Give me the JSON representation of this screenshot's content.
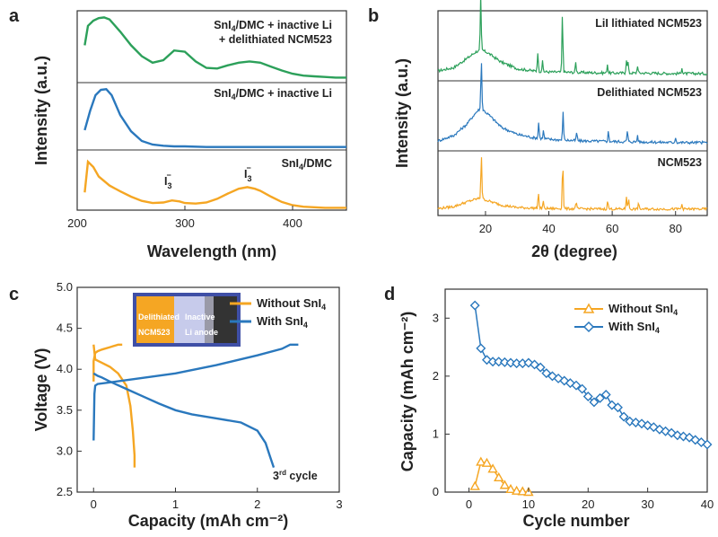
{
  "figure": {
    "panels": [
      "a",
      "b",
      "c",
      "d"
    ]
  },
  "chart_data": [
    {
      "id": "a",
      "type": "line",
      "xlabel": "Wavelength (nm)",
      "ylabel": "Intensity (a.u.)",
      "xlim": [
        200,
        450
      ],
      "xticks": [
        "200",
        "300",
        "400"
      ],
      "annotations": [
        "I3⁻",
        "I3⁻"
      ],
      "series": [
        {
          "name": "SnI4/DMC + inactive Li + delithiated NCM523",
          "color": "#2ca05a",
          "x": [
            207,
            210,
            215,
            220,
            225,
            230,
            240,
            250,
            260,
            270,
            280,
            290,
            300,
            310,
            320,
            330,
            340,
            350,
            360,
            370,
            380,
            390,
            400,
            410,
            420,
            430,
            440,
            450
          ],
          "y": [
            0.55,
            0.85,
            0.93,
            0.97,
            0.98,
            0.95,
            0.76,
            0.55,
            0.38,
            0.28,
            0.32,
            0.47,
            0.45,
            0.3,
            0.2,
            0.19,
            0.24,
            0.28,
            0.3,
            0.28,
            0.22,
            0.16,
            0.11,
            0.08,
            0.07,
            0.06,
            0.05,
            0.05
          ]
        },
        {
          "name": "SnI4/DMC + inactive Li",
          "color": "#2a78bd",
          "x": [
            207,
            212,
            217,
            222,
            227,
            232,
            240,
            250,
            260,
            270,
            280,
            290,
            300,
            320,
            340,
            360,
            380,
            400,
            420,
            450
          ],
          "y": [
            0.3,
            0.62,
            0.88,
            0.97,
            0.98,
            0.88,
            0.55,
            0.28,
            0.12,
            0.06,
            0.04,
            0.03,
            0.03,
            0.02,
            0.02,
            0.02,
            0.02,
            0.02,
            0.02,
            0.02
          ]
        },
        {
          "name": "SnI4/DMC",
          "color": "#f5a623",
          "x": [
            207,
            210,
            215,
            220,
            230,
            240,
            250,
            260,
            270,
            280,
            288,
            295,
            300,
            310,
            320,
            330,
            340,
            350,
            358,
            365,
            370,
            380,
            390,
            400,
            410,
            420,
            430,
            440,
            450
          ],
          "y": [
            0.3,
            0.88,
            0.78,
            0.6,
            0.43,
            0.32,
            0.22,
            0.14,
            0.1,
            0.11,
            0.15,
            0.13,
            0.1,
            0.09,
            0.11,
            0.18,
            0.28,
            0.37,
            0.4,
            0.37,
            0.33,
            0.22,
            0.12,
            0.06,
            0.03,
            0.02,
            0.01,
            0.01,
            0.01
          ]
        }
      ]
    },
    {
      "id": "b",
      "type": "line",
      "xlabel": "2θ (degree)",
      "ylabel": "Intensity (a.u.)",
      "xlim": [
        5,
        90
      ],
      "xticks": [
        "20",
        "40",
        "60",
        "80"
      ],
      "series": [
        {
          "name": "LiI lithiated NCM523",
          "color": "#2ca05a",
          "broad": [
            [
              5,
              0.1
            ],
            [
              10,
              0.16
            ],
            [
              14,
              0.32
            ],
            [
              17,
              0.45
            ],
            [
              19,
              0.48
            ],
            [
              21,
              0.42
            ],
            [
              25,
              0.26
            ],
            [
              30,
              0.14
            ],
            [
              35,
              0.1
            ],
            [
              40,
              0.08
            ],
            [
              50,
              0.07
            ],
            [
              60,
              0.06
            ],
            [
              70,
              0.06
            ],
            [
              80,
              0.05
            ],
            [
              90,
              0.05
            ]
          ],
          "peaks": [
            [
              18.5,
              1.0
            ],
            [
              36.5,
              0.35
            ],
            [
              38,
              0.18
            ],
            [
              44.3,
              1.05
            ],
            [
              48.5,
              0.18
            ],
            [
              58.5,
              0.16
            ],
            [
              64.5,
              0.25
            ],
            [
              65,
              0.2
            ],
            [
              68,
              0.14
            ],
            [
              82,
              0.12
            ]
          ]
        },
        {
          "name": "Delithiated NCM523",
          "color": "#2a78bd",
          "broad": [
            [
              5,
              0.1
            ],
            [
              10,
              0.2
            ],
            [
              14,
              0.4
            ],
            [
              17,
              0.62
            ],
            [
              18.5,
              0.7
            ],
            [
              21,
              0.58
            ],
            [
              25,
              0.35
            ],
            [
              30,
              0.22
            ],
            [
              35,
              0.16
            ],
            [
              40,
              0.13
            ],
            [
              50,
              0.1
            ],
            [
              60,
              0.09
            ],
            [
              70,
              0.08
            ],
            [
              80,
              0.07
            ],
            [
              90,
              0.07
            ]
          ],
          "peaks": [
            [
              18.7,
              0.9
            ],
            [
              36.8,
              0.3
            ],
            [
              38.3,
              0.15
            ],
            [
              44.5,
              0.5
            ],
            [
              48.8,
              0.15
            ],
            [
              58.8,
              0.18
            ],
            [
              64.8,
              0.2
            ],
            [
              68,
              0.12
            ],
            [
              80,
              0.1
            ]
          ]
        },
        {
          "name": "NCM523",
          "color": "#f5a623",
          "broad": [
            [
              5,
              0.05
            ],
            [
              10,
              0.09
            ],
            [
              14,
              0.18
            ],
            [
              17,
              0.24
            ],
            [
              18.5,
              0.26
            ],
            [
              21,
              0.2
            ],
            [
              25,
              0.12
            ],
            [
              30,
              0.07
            ],
            [
              40,
              0.05
            ],
            [
              60,
              0.04
            ],
            [
              90,
              0.04
            ]
          ],
          "peaks": [
            [
              18.7,
              0.88
            ],
            [
              36.7,
              0.32
            ],
            [
              38.2,
              0.14
            ],
            [
              44.4,
              0.95
            ],
            [
              48.6,
              0.14
            ],
            [
              58.6,
              0.16
            ],
            [
              64.5,
              0.26
            ],
            [
              65.2,
              0.2
            ],
            [
              68.3,
              0.12
            ],
            [
              82,
              0.1
            ]
          ]
        }
      ]
    },
    {
      "id": "c",
      "type": "line",
      "xlabel": "Capacity (mAh cm⁻²)",
      "ylabel": "Voltage (V)",
      "xlim": [
        -0.2,
        3.0
      ],
      "ylim": [
        2.5,
        5.0
      ],
      "xticks": [
        0,
        1,
        2,
        3
      ],
      "yticks": [
        "2.5",
        "3.0",
        "3.5",
        "4.0",
        "4.5",
        "5.0"
      ],
      "legend_position": "top-right",
      "annotation": "3rd cycle",
      "inset": [
        "Delithiated",
        "NCM523",
        "Inactive",
        "Li anode"
      ],
      "series": [
        {
          "name": "Without SnI4",
          "color": "#f5a623",
          "charge": {
            "x": [
              0.0,
              0.0,
              0.02,
              0.05,
              0.1,
              0.2,
              0.3,
              0.35
            ],
            "y": [
              3.85,
              4.1,
              4.2,
              4.22,
              4.24,
              4.27,
              4.3,
              4.3
            ]
          },
          "discharge": {
            "x": [
              0.0,
              0.02,
              0.1,
              0.2,
              0.3,
              0.4,
              0.45,
              0.48,
              0.5,
              0.5
            ],
            "y": [
              4.3,
              4.12,
              4.08,
              4.03,
              3.95,
              3.8,
              3.55,
              3.25,
              2.95,
              2.8
            ]
          }
        },
        {
          "name": "With SnI4",
          "color": "#2a78bd",
          "charge": {
            "x": [
              0.0,
              0.01,
              0.02,
              0.05,
              0.2,
              0.5,
              1.0,
              1.5,
              2.0,
              2.3,
              2.4,
              2.5
            ],
            "y": [
              3.13,
              3.7,
              3.8,
              3.82,
              3.84,
              3.88,
              3.95,
              4.05,
              4.17,
              4.25,
              4.3,
              4.3
            ]
          },
          "discharge": {
            "x": [
              0.0,
              0.05,
              0.1,
              0.2,
              0.4,
              0.6,
              0.8,
              1.0,
              1.2,
              1.5,
              1.8,
              2.0,
              2.1,
              2.15,
              2.2
            ],
            "y": [
              3.95,
              3.92,
              3.9,
              3.85,
              3.76,
              3.67,
              3.58,
              3.5,
              3.45,
              3.4,
              3.35,
              3.25,
              3.1,
              2.95,
              2.8
            ]
          }
        }
      ]
    },
    {
      "id": "d",
      "type": "line",
      "xlabel": "Cycle number",
      "ylabel": "Capacity (mAh cm⁻²)",
      "xlim": [
        -4,
        40
      ],
      "ylim": [
        0,
        3.5
      ],
      "xticks": [
        "0",
        "10",
        "20",
        "30",
        "40"
      ],
      "yticks": [
        "0",
        "1",
        "2",
        "3"
      ],
      "legend_position": "top-right",
      "series": [
        {
          "name": "Without SnI4",
          "color": "#f5a623",
          "marker": "triangle",
          "x": [
            1,
            2,
            3,
            4,
            5,
            6,
            7,
            8,
            9,
            10
          ],
          "y": [
            0.1,
            0.52,
            0.5,
            0.4,
            0.25,
            0.12,
            0.05,
            0.02,
            0.01,
            0.0
          ]
        },
        {
          "name": "With SnI4",
          "color": "#2a78bd",
          "marker": "diamond",
          "x": [
            1,
            2,
            3,
            4,
            5,
            6,
            7,
            8,
            9,
            10,
            11,
            12,
            13,
            14,
            15,
            16,
            17,
            18,
            19,
            20,
            21,
            22,
            23,
            24,
            25,
            26,
            27,
            28,
            29,
            30,
            31,
            32,
            33,
            34,
            35,
            36,
            37,
            38,
            39,
            40
          ],
          "y": [
            3.22,
            2.48,
            2.28,
            2.25,
            2.25,
            2.24,
            2.23,
            2.22,
            2.22,
            2.23,
            2.2,
            2.15,
            2.05,
            2.0,
            1.96,
            1.92,
            1.88,
            1.84,
            1.78,
            1.65,
            1.55,
            1.62,
            1.68,
            1.5,
            1.46,
            1.3,
            1.22,
            1.2,
            1.18,
            1.15,
            1.12,
            1.08,
            1.05,
            1.02,
            0.98,
            0.96,
            0.94,
            0.9,
            0.86,
            0.82
          ]
        }
      ]
    }
  ]
}
